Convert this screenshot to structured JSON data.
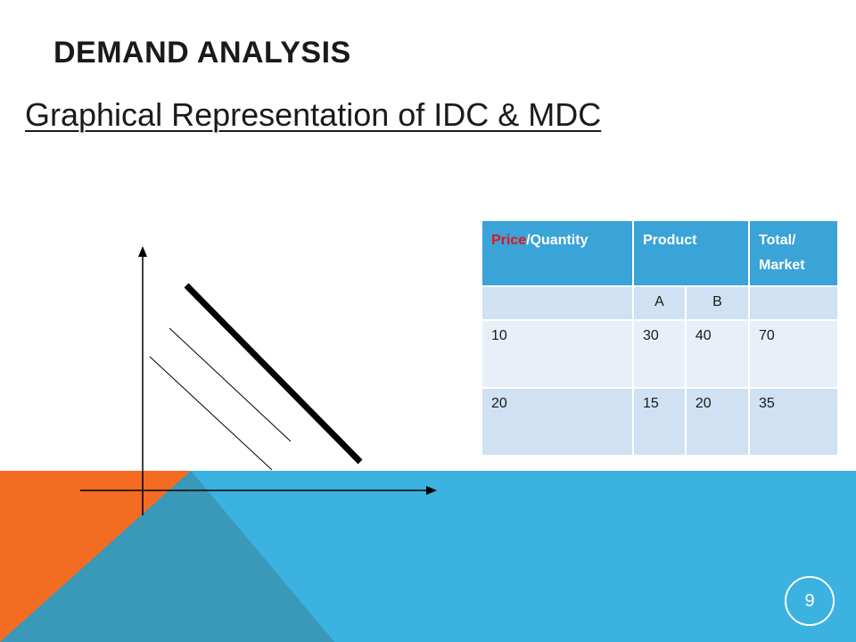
{
  "slide": {
    "title": "Demand Analysis",
    "subtitle": "Graphical Representation of IDC & MDC",
    "page_number": "9"
  },
  "table": {
    "header": {
      "col1_price": "Price",
      "col1_rest": "/Quantity",
      "col2": "Product",
      "col4_line1": "Total/",
      "col4_line2": "Market"
    },
    "subheader": [
      "",
      "A",
      "B",
      ""
    ],
    "rows": [
      [
        "10",
        "30",
        "40",
        "70"
      ],
      [
        "20",
        "15",
        "20",
        "35"
      ]
    ]
  },
  "colors": {
    "orange": "#f36c21",
    "blue": "#3bb2e0",
    "dark_blue": "#3a98b8",
    "red": "#e8151b",
    "header_blue": "#3aa3d8"
  }
}
